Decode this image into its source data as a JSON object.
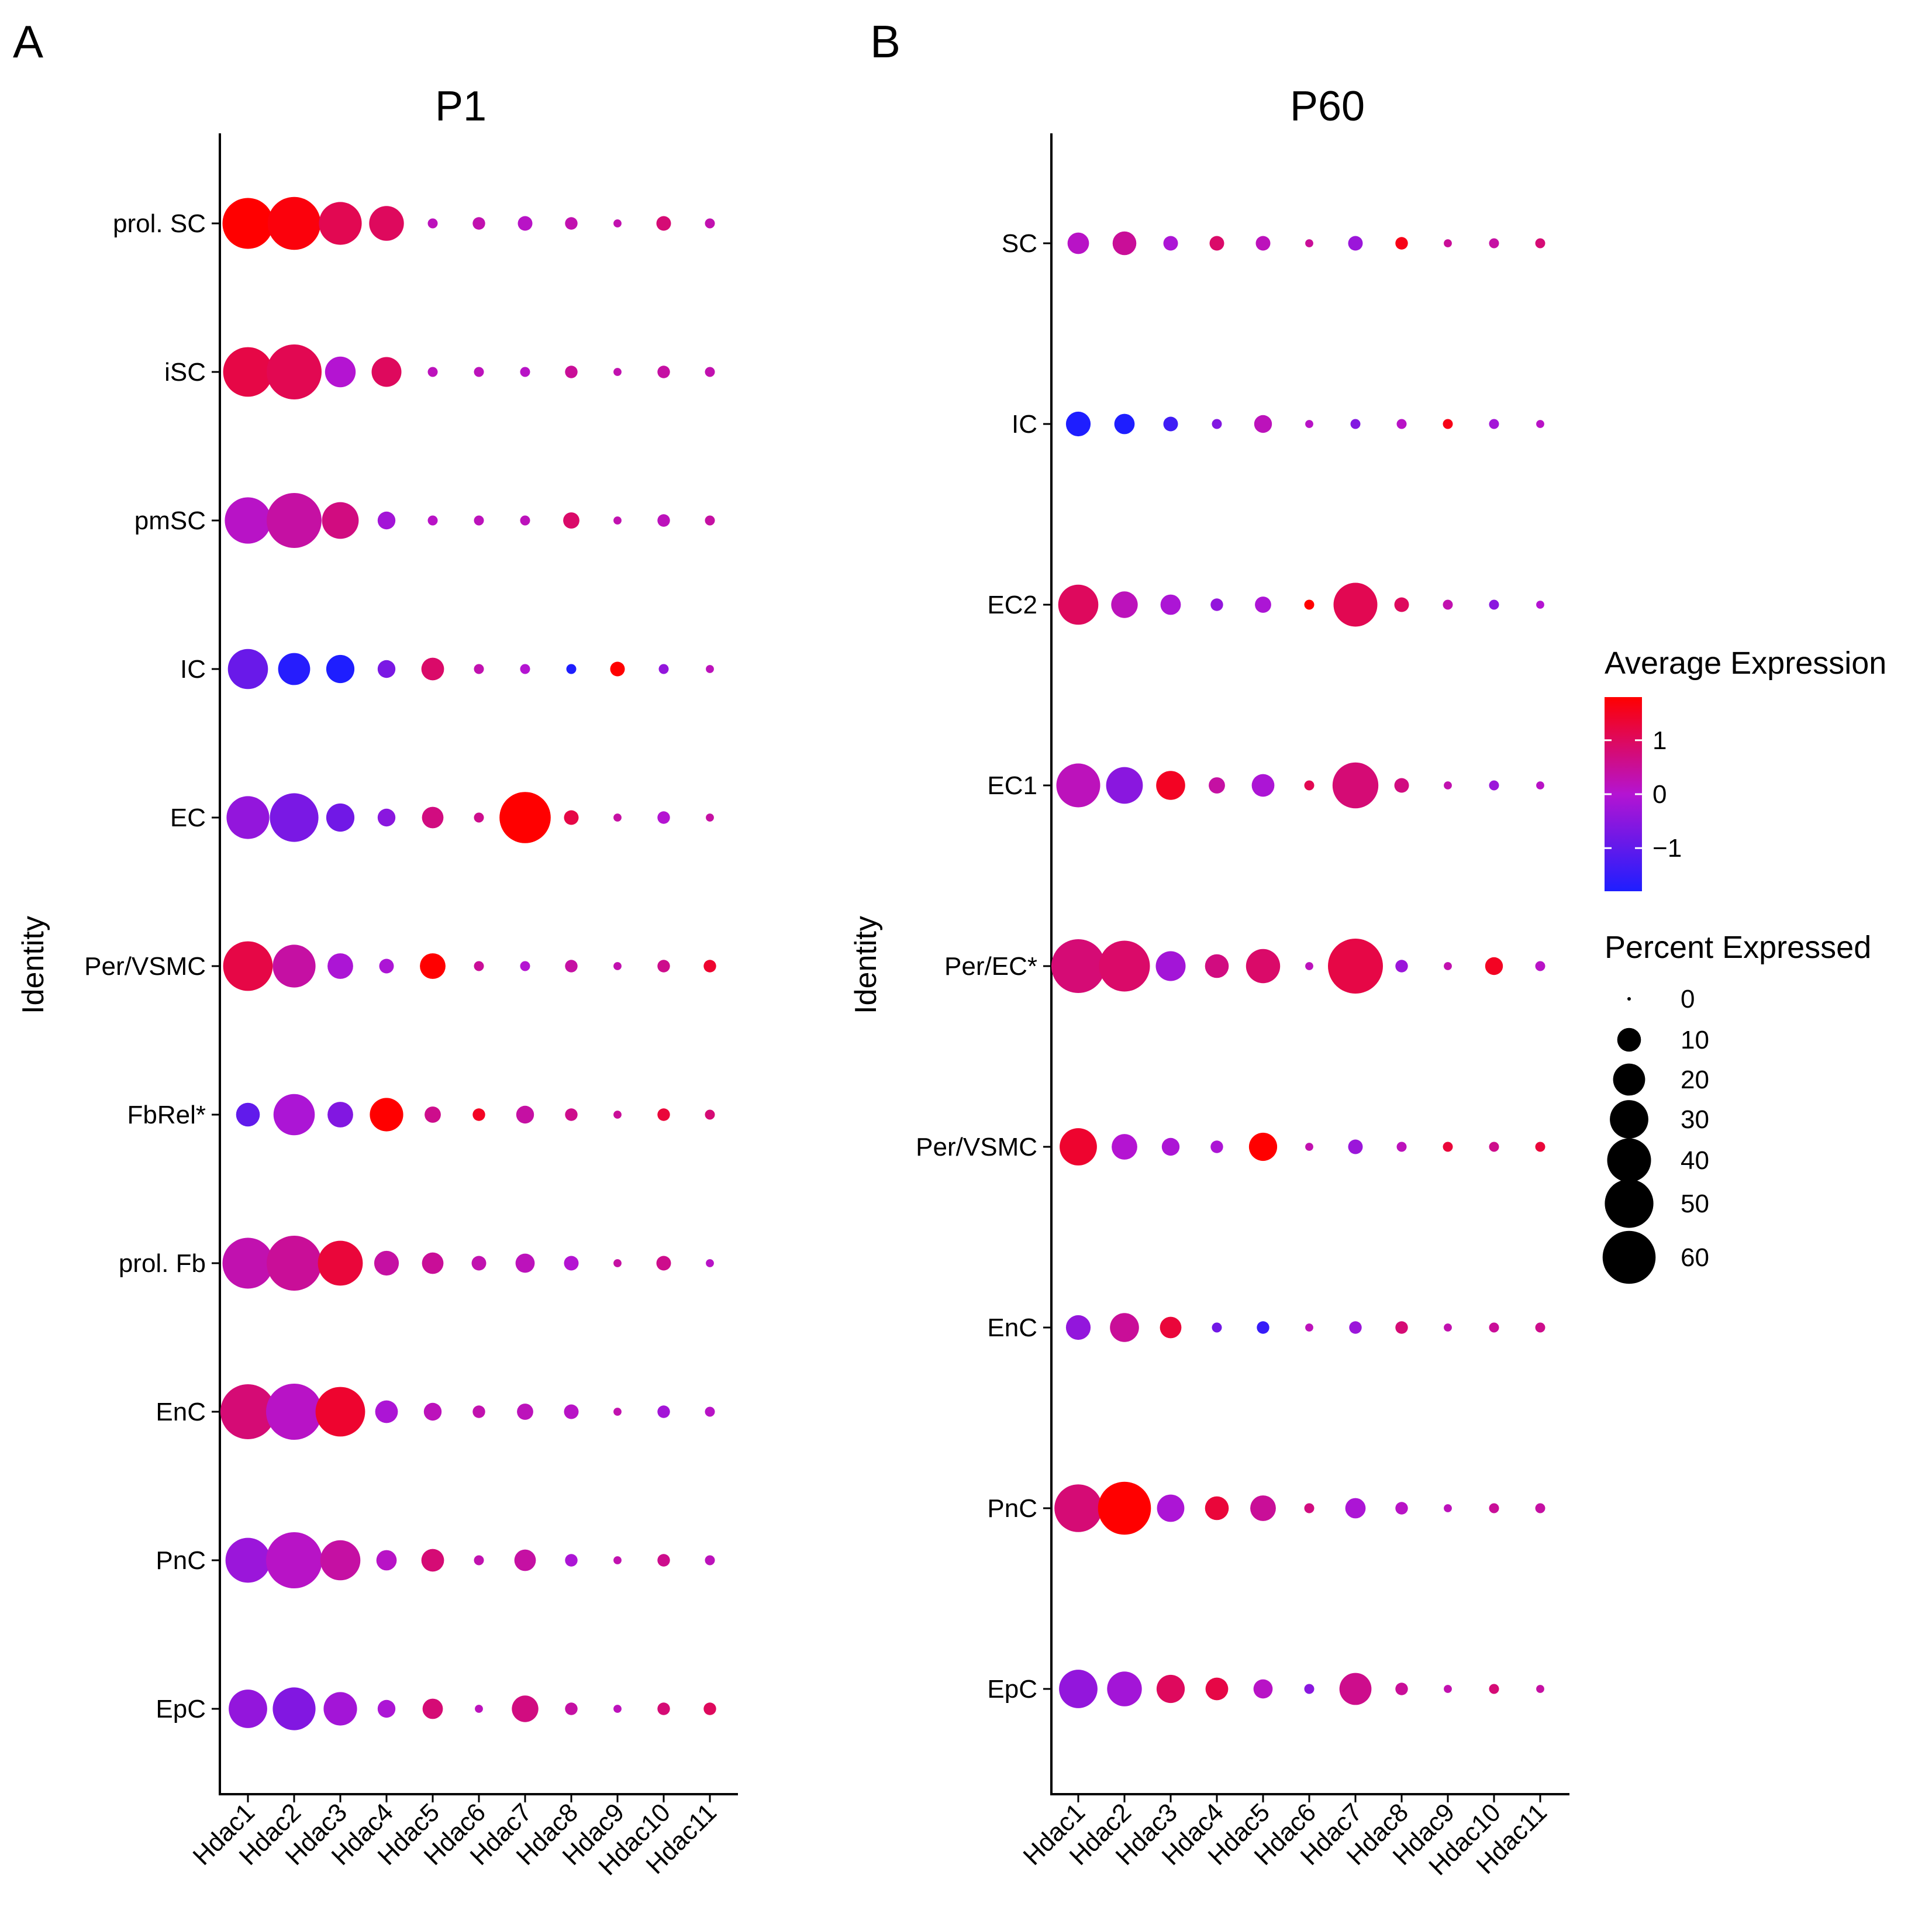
{
  "panels": [
    {
      "letter": "A",
      "title": "P1"
    },
    {
      "letter": "B",
      "title": "P60"
    }
  ],
  "legend": {
    "color_title": "Average Expression",
    "color_ticks": [
      "1",
      "0",
      "−1"
    ],
    "color_tick_values": [
      1,
      0,
      -1
    ],
    "color_range": [
      -1.8,
      1.8
    ],
    "colors": {
      "low": "#1e1eff",
      "mid": "#b414d2",
      "high": "#ff0000"
    },
    "size_title": "Percent Expressed",
    "size_ticks": [
      "0",
      "10",
      "20",
      "30",
      "40",
      "50",
      "60"
    ],
    "size_values": [
      0,
      10,
      20,
      30,
      40,
      50,
      60
    ]
  },
  "chart_data": [
    {
      "type": "dot",
      "title": "P1",
      "ylabel": "Identity",
      "xlabel": "",
      "categories": [
        "Hdac1",
        "Hdac2",
        "Hdac3",
        "Hdac4",
        "Hdac5",
        "Hdac6",
        "Hdac7",
        "Hdac8",
        "Hdac9",
        "Hdac10",
        "Hdac11"
      ],
      "identities": [
        "prol. SC",
        "iSC",
        "pmSC",
        "IC",
        "EC",
        "Per/VSMC",
        "FbRel*",
        "prol. Fb",
        "EnC",
        "PnC",
        "EpC"
      ],
      "series": [
        {
          "name": "prol. SC",
          "pct": [
            55,
            60,
            38,
            24,
            1,
            2,
            3,
            2,
            0.5,
            3,
            1
          ],
          "avg": [
            1.8,
            1.7,
            1.1,
            1.0,
            0.2,
            0.3,
            0.1,
            0.3,
            0.3,
            0.8,
            0.3
          ]
        },
        {
          "name": "iSC",
          "pct": [
            52,
            65,
            18,
            17,
            1,
            1,
            1,
            2,
            0.5,
            2,
            1
          ],
          "avg": [
            1.2,
            1.1,
            0.0,
            1.0,
            0.2,
            0.2,
            0.1,
            0.5,
            0.3,
            0.4,
            0.3
          ]
        },
        {
          "name": "pmSC",
          "pct": [
            45,
            65,
            27,
            5,
            1,
            1,
            1,
            4,
            0.5,
            2,
            1
          ],
          "avg": [
            0.1,
            0.4,
            0.7,
            -0.2,
            0.1,
            0.2,
            0.2,
            0.9,
            0.3,
            0.2,
            0.4
          ]
        },
        {
          "name": "IC",
          "pct": [
            33,
            20,
            15,
            5,
            9,
            1,
            1,
            1,
            3,
            1,
            0.5
          ],
          "avg": [
            -0.9,
            -1.7,
            -1.8,
            -0.7,
            0.9,
            0.3,
            0.0,
            -1.8,
            1.8,
            -0.4,
            0.2
          ]
        },
        {
          "name": "EC",
          "pct": [
            38,
            50,
            15,
            5,
            8,
            1,
            56,
            3,
            0.5,
            2,
            0.5
          ],
          "avg": [
            -0.4,
            -0.7,
            -0.8,
            -0.5,
            0.7,
            0.6,
            1.8,
            1.2,
            0.4,
            0.0,
            0.4
          ]
        },
        {
          "name": "Per/VSMC",
          "pct": [
            52,
            38,
            12,
            3,
            12,
            1,
            1,
            2,
            0.5,
            2,
            2
          ],
          "avg": [
            1.2,
            0.4,
            -0.1,
            -0.1,
            1.8,
            0.5,
            0.0,
            0.4,
            0.3,
            0.6,
            1.4
          ]
        },
        {
          "name": "FbRel*",
          "pct": [
            10,
            35,
            12,
            22,
            4,
            2,
            5,
            2,
            0.5,
            2,
            1
          ],
          "avg": [
            -1.0,
            -0.1,
            -0.6,
            1.8,
            0.6,
            1.5,
            0.4,
            0.6,
            0.5,
            1.3,
            0.8
          ]
        },
        {
          "name": "prol. Fb",
          "pct": [
            55,
            65,
            42,
            11,
            8,
            3,
            6,
            3,
            0.5,
            3,
            0.5
          ],
          "avg": [
            0.3,
            0.5,
            1.3,
            0.4,
            0.5,
            0.3,
            0.2,
            0.0,
            0.4,
            0.6,
            0.1
          ]
        },
        {
          "name": "EnC",
          "pct": [
            65,
            68,
            52,
            9,
            5,
            2,
            4,
            3,
            0.5,
            2,
            1
          ],
          "avg": [
            0.8,
            0.1,
            1.4,
            -0.1,
            0.2,
            0.3,
            0.2,
            0.1,
            0.3,
            -0.2,
            0.1
          ]
        },
        {
          "name": "PnC",
          "pct": [
            42,
            68,
            33,
            7,
            9,
            1,
            8,
            2,
            0.5,
            2,
            1
          ],
          "avg": [
            -0.3,
            0.1,
            0.4,
            0.1,
            0.8,
            0.3,
            0.4,
            -0.1,
            0.3,
            0.6,
            0.2
          ]
        },
        {
          "name": "EpC",
          "pct": [
            30,
            38,
            22,
            5,
            7,
            0.5,
            13,
            2,
            0.5,
            2,
            2
          ],
          "avg": [
            -0.4,
            -0.6,
            -0.2,
            -0.1,
            0.8,
            0.2,
            0.7,
            0.4,
            0.2,
            0.8,
            1.0
          ]
        }
      ]
    },
    {
      "type": "dot",
      "title": "P60",
      "ylabel": "Identity",
      "xlabel": "",
      "categories": [
        "Hdac1",
        "Hdac2",
        "Hdac3",
        "Hdac4",
        "Hdac5",
        "Hdac6",
        "Hdac7",
        "Hdac8",
        "Hdac9",
        "Hdac10",
        "Hdac11"
      ],
      "identities": [
        "SC",
        "IC",
        "EC2",
        "EC1",
        "Per/EC*",
        "Per/VSMC",
        "EnC",
        "PnC",
        "EpC"
      ],
      "series": [
        {
          "name": "SC",
          "pct": [
            8,
            10,
            3,
            3,
            3,
            0.5,
            3,
            2,
            0.5,
            1,
            1
          ],
          "avg": [
            0.1,
            0.5,
            -0.1,
            0.9,
            0.2,
            0.5,
            -0.3,
            1.6,
            0.5,
            0.4,
            0.8
          ]
        },
        {
          "name": "IC",
          "pct": [
            11,
            7,
            3,
            1,
            5,
            0.5,
            1,
            1,
            1,
            1,
            0.5
          ],
          "avg": [
            -1.8,
            -1.8,
            -1.4,
            -0.6,
            0.2,
            0.1,
            -0.6,
            0.1,
            1.6,
            -0.2,
            0.1
          ]
        },
        {
          "name": "EC2",
          "pct": [
            33,
            13,
            7,
            2,
            4,
            1,
            40,
            3,
            1,
            1,
            0.5
          ],
          "avg": [
            1.0,
            0.2,
            -0.1,
            -0.4,
            -0.1,
            1.8,
            1.1,
            1.0,
            0.3,
            -0.5,
            0.0
          ]
        },
        {
          "name": "EC1",
          "pct": [
            40,
            27,
            16,
            4,
            9,
            1,
            44,
            3,
            0.5,
            1,
            0.5
          ],
          "avg": [
            0.2,
            -0.5,
            1.5,
            0.4,
            -0.1,
            1.1,
            0.8,
            0.7,
            0.3,
            -0.3,
            0.1
          ]
        },
        {
          "name": "Per/EC*",
          "pct": [
            62,
            55,
            17,
            10,
            23,
            0.5,
            65,
            2,
            0.5,
            5,
            1
          ],
          "avg": [
            0.8,
            0.9,
            -0.2,
            0.7,
            0.9,
            0.2,
            1.2,
            -0.3,
            0.3,
            1.5,
            0.1
          ]
        },
        {
          "name": "Per/VSMC",
          "pct": [
            28,
            12,
            5,
            2,
            15,
            0.5,
            3,
            1,
            1,
            1,
            1
          ],
          "avg": [
            1.4,
            0.0,
            -0.1,
            -0.1,
            1.8,
            0.3,
            -0.3,
            0.2,
            1.3,
            0.6,
            1.3
          ]
        },
        {
          "name": "EnC",
          "pct": [
            11,
            16,
            8,
            1,
            2,
            0.5,
            2,
            2,
            0.5,
            1,
            1
          ],
          "avg": [
            -0.4,
            0.5,
            1.3,
            -0.8,
            -1.5,
            0.2,
            -0.3,
            0.8,
            0.3,
            0.5,
            0.6
          ]
        },
        {
          "name": "PnC",
          "pct": [
            48,
            60,
            14,
            10,
            12,
            1,
            7,
            2,
            0.5,
            1,
            1
          ],
          "avg": [
            0.8,
            1.8,
            -0.1,
            1.3,
            0.5,
            0.7,
            -0.1,
            0.1,
            0.2,
            0.5,
            0.4
          ]
        },
        {
          "name": "EpC",
          "pct": [
            30,
            24,
            15,
            9,
            6,
            1,
            20,
            2,
            0.5,
            1,
            0.5
          ],
          "avg": [
            -0.4,
            -0.2,
            1.0,
            1.2,
            0.1,
            -0.5,
            0.6,
            0.5,
            0.3,
            0.8,
            0.4
          ]
        }
      ]
    }
  ]
}
